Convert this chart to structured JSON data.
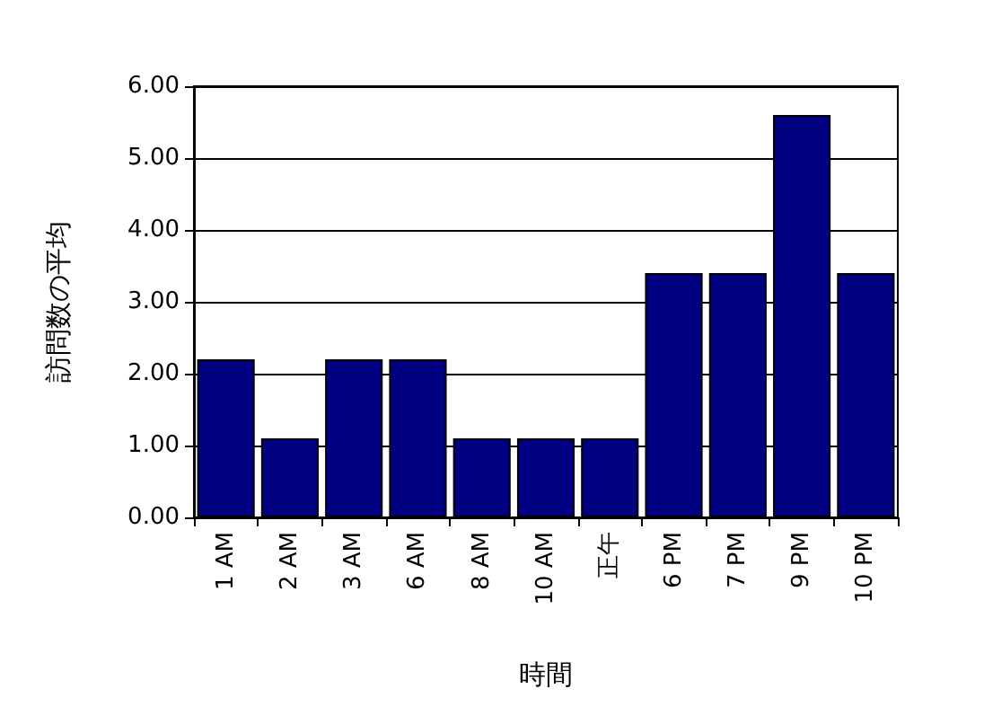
{
  "chart_data": {
    "type": "bar",
    "xlabel": "時間",
    "ylabel": "訪問数の平均",
    "categories": [
      "1 AM",
      "2 AM",
      "3 AM",
      "6 AM",
      "8 AM",
      "10 AM",
      "正午",
      "6 PM",
      "7 PM",
      "9 PM",
      "10 PM"
    ],
    "values": [
      2.2,
      1.1,
      2.2,
      2.2,
      1.1,
      1.1,
      1.1,
      3.4,
      3.4,
      5.6,
      3.4
    ],
    "color": "#000080",
    "ylim": [
      0,
      6
    ],
    "yticks": [
      {
        "value": 0,
        "label": "0.00"
      },
      {
        "value": 1,
        "label": "1.00"
      },
      {
        "value": 2,
        "label": "2.00"
      },
      {
        "value": 3,
        "label": "3.00"
      },
      {
        "value": 4,
        "label": "4.00"
      },
      {
        "value": 5,
        "label": "5.00"
      },
      {
        "value": 6,
        "label": "6.00"
      }
    ],
    "grid": "y"
  }
}
